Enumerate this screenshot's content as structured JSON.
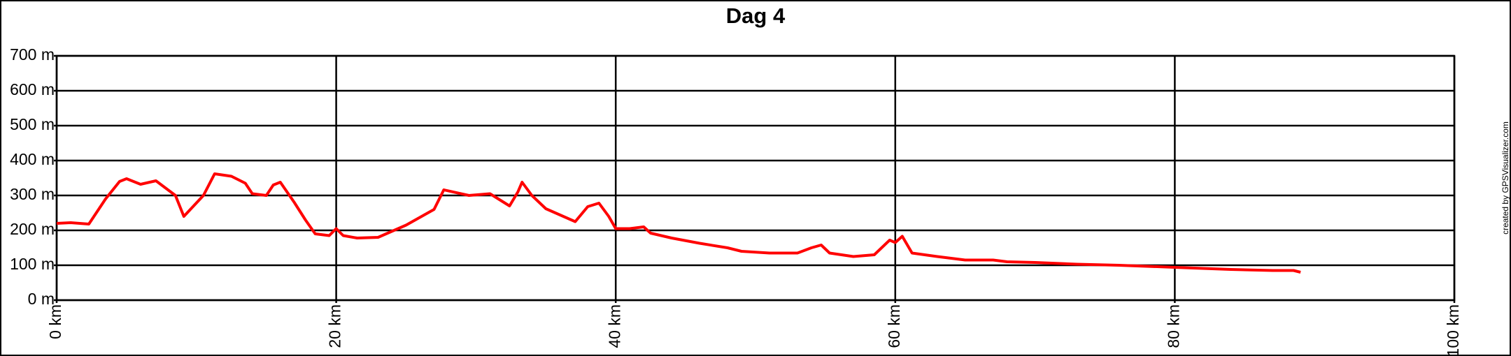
{
  "chart_data": {
    "type": "line",
    "title": "Dag 4",
    "credit": "created by GPSVisualizer.com",
    "color": "#ff0000",
    "grid": true,
    "xlim": [
      0,
      100
    ],
    "xticks": [
      {
        "value": 0,
        "label": "0 km"
      },
      {
        "value": 20,
        "label": "20 km"
      },
      {
        "value": 40,
        "label": "40 km"
      },
      {
        "value": 60,
        "label": "60 km"
      },
      {
        "value": 80,
        "label": "80 km"
      },
      {
        "value": 100,
        "label": "100 km"
      }
    ],
    "ylim": [
      0,
      700
    ],
    "yticks": [
      {
        "value": 0,
        "label": "0 m"
      },
      {
        "value": 100,
        "label": "100 m"
      },
      {
        "value": 200,
        "label": "200 m"
      },
      {
        "value": 300,
        "label": "300 m"
      },
      {
        "value": 400,
        "label": "400 m"
      },
      {
        "value": 500,
        "label": "500 m"
      },
      {
        "value": 600,
        "label": "600 m"
      },
      {
        "value": 700,
        "label": "700 m"
      }
    ],
    "x": [
      0,
      1,
      2.3,
      3.5,
      4.5,
      5,
      6,
      7.1,
      8.5,
      9.1,
      10.5,
      11.3,
      12.5,
      13.5,
      14,
      15,
      15.5,
      16,
      17,
      17.8,
      18.5,
      19.5,
      20,
      20.5,
      21.5,
      23,
      25,
      27,
      27.7,
      29.5,
      31,
      32.4,
      33,
      33.3,
      34,
      35,
      37.1,
      38,
      38.8,
      39.5,
      40,
      41,
      42,
      42.5,
      44,
      46,
      48,
      49,
      51,
      53,
      54,
      54.7,
      55.3,
      57,
      58.5,
      59.6,
      60,
      60.5,
      61.2,
      63,
      65,
      67,
      68,
      70,
      73,
      76,
      80,
      84,
      87,
      88.5,
      89
    ],
    "values": [
      220,
      222,
      218,
      290,
      340,
      348,
      332,
      342,
      300,
      240,
      300,
      362,
      355,
      335,
      305,
      300,
      330,
      338,
      280,
      230,
      190,
      185,
      205,
      185,
      178,
      180,
      215,
      260,
      316,
      300,
      305,
      270,
      310,
      338,
      300,
      262,
      225,
      268,
      278,
      240,
      205,
      205,
      210,
      192,
      178,
      163,
      150,
      140,
      135,
      135,
      150,
      158,
      135,
      125,
      130,
      172,
      165,
      183,
      135,
      125,
      115,
      115,
      110,
      108,
      103,
      100,
      94,
      88,
      85,
      85,
      80
    ]
  }
}
